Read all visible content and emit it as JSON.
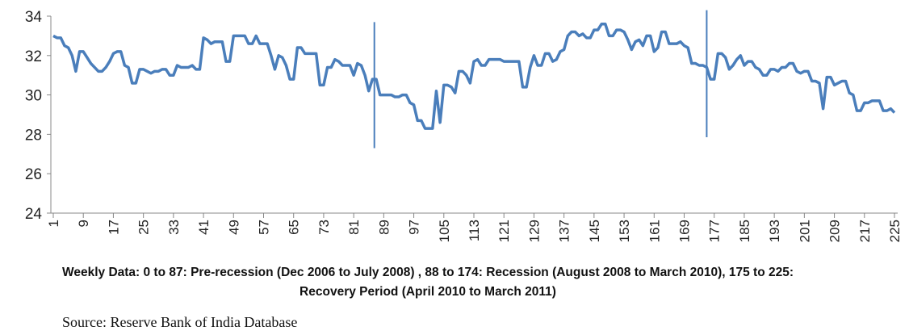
{
  "chart_data": {
    "type": "line",
    "x": [
      1,
      2,
      3,
      4,
      5,
      6,
      7,
      8,
      9,
      10,
      11,
      12,
      13,
      14,
      15,
      16,
      17,
      18,
      19,
      20,
      21,
      22,
      23,
      24,
      25,
      26,
      27,
      28,
      29,
      30,
      31,
      32,
      33,
      34,
      35,
      36,
      37,
      38,
      39,
      40,
      41,
      42,
      43,
      44,
      45,
      46,
      47,
      48,
      49,
      50,
      51,
      52,
      53,
      54,
      55,
      56,
      57,
      58,
      59,
      60,
      61,
      62,
      63,
      64,
      65,
      66,
      67,
      68,
      69,
      70,
      71,
      72,
      73,
      74,
      75,
      76,
      77,
      78,
      79,
      80,
      81,
      82,
      83,
      84,
      85,
      86,
      87,
      88,
      89,
      90,
      91,
      92,
      93,
      94,
      95,
      96,
      97,
      98,
      99,
      100,
      101,
      102,
      103,
      104,
      105,
      106,
      107,
      108,
      109,
      110,
      111,
      112,
      113,
      114,
      115,
      116,
      117,
      118,
      119,
      120,
      121,
      122,
      123,
      124,
      125,
      126,
      127,
      128,
      129,
      130,
      131,
      132,
      133,
      134,
      135,
      136,
      137,
      138,
      139,
      140,
      141,
      142,
      143,
      144,
      145,
      146,
      147,
      148,
      149,
      150,
      151,
      152,
      153,
      154,
      155,
      156,
      157,
      158,
      159,
      160,
      161,
      162,
      163,
      164,
      165,
      166,
      167,
      168,
      169,
      170,
      171,
      172,
      173,
      174,
      175,
      176,
      177,
      178,
      179,
      180,
      181,
      182,
      183,
      184,
      185,
      186,
      187,
      188,
      189,
      190,
      191,
      192,
      193,
      194,
      195,
      196,
      197,
      198,
      199,
      200,
      201,
      202,
      203,
      204,
      205,
      206,
      207,
      208,
      209,
      210,
      211,
      212,
      213,
      214,
      215,
      216,
      217,
      218,
      219,
      220,
      221,
      222,
      223,
      224,
      225
    ],
    "series": [
      {
        "color": "#4a7ebb",
        "values": [
          33.0,
          32.9,
          32.9,
          32.5,
          32.4,
          32.0,
          31.2,
          32.2,
          32.2,
          31.9,
          31.6,
          31.4,
          31.2,
          31.2,
          31.4,
          31.7,
          32.1,
          32.2,
          32.2,
          31.5,
          31.4,
          30.6,
          30.6,
          31.3,
          31.3,
          31.2,
          31.1,
          31.2,
          31.2,
          31.3,
          31.3,
          31.0,
          31.0,
          31.5,
          31.4,
          31.4,
          31.4,
          31.5,
          31.3,
          31.3,
          32.9,
          32.8,
          32.6,
          32.7,
          32.7,
          32.7,
          31.7,
          31.7,
          33.0,
          33.0,
          33.0,
          33.0,
          32.6,
          32.6,
          33.0,
          32.6,
          32.6,
          32.6,
          32.0,
          31.3,
          32.0,
          31.9,
          31.5,
          30.8,
          30.8,
          32.4,
          32.4,
          32.1,
          32.1,
          32.1,
          32.1,
          30.5,
          30.5,
          31.4,
          31.4,
          31.8,
          31.7,
          31.5,
          31.5,
          31.5,
          31.0,
          31.6,
          31.5,
          31.0,
          30.2,
          30.8,
          30.8,
          30.0,
          30.0,
          30.0,
          30.0,
          29.9,
          29.9,
          30.0,
          30.0,
          29.6,
          29.5,
          28.7,
          28.7,
          28.3,
          28.3,
          28.3,
          30.2,
          28.6,
          30.5,
          30.5,
          30.4,
          30.1,
          31.2,
          31.2,
          31.0,
          30.6,
          31.7,
          31.8,
          31.5,
          31.5,
          31.8,
          31.8,
          31.8,
          31.8,
          31.7,
          31.7,
          31.7,
          31.7,
          31.7,
          30.4,
          30.4,
          31.4,
          32.0,
          31.5,
          31.5,
          32.1,
          32.1,
          31.7,
          31.8,
          32.2,
          32.3,
          33.0,
          33.2,
          33.2,
          33.0,
          33.1,
          32.9,
          32.9,
          33.3,
          33.3,
          33.6,
          33.6,
          33.0,
          33.0,
          33.3,
          33.3,
          33.2,
          32.8,
          32.3,
          32.7,
          32.8,
          32.5,
          33.0,
          33.0,
          32.2,
          32.4,
          33.2,
          33.2,
          32.6,
          32.6,
          32.6,
          32.7,
          32.5,
          32.4,
          31.6,
          31.6,
          31.5,
          31.5,
          31.4,
          30.8,
          30.8,
          32.1,
          32.1,
          31.9,
          31.3,
          31.5,
          31.8,
          32.0,
          31.5,
          31.7,
          31.7,
          31.4,
          31.3,
          31.0,
          31.0,
          31.3,
          31.3,
          31.2,
          31.4,
          31.4,
          31.6,
          31.6,
          31.2,
          31.1,
          31.2,
          31.2,
          30.7,
          30.7,
          30.6,
          29.3,
          30.9,
          30.9,
          30.5,
          30.6,
          30.7,
          30.7,
          30.1,
          30.0,
          29.2,
          29.2,
          29.6,
          29.6,
          29.7,
          29.7,
          29.7,
          29.2,
          29.2,
          29.3,
          29.1
        ]
      }
    ],
    "xlim": [
      1,
      225
    ],
    "xticks": [
      1,
      9,
      17,
      25,
      33,
      41,
      49,
      57,
      65,
      73,
      81,
      89,
      97,
      105,
      113,
      121,
      129,
      137,
      145,
      153,
      161,
      169,
      177,
      185,
      193,
      201,
      209,
      217,
      225
    ],
    "ylim": [
      24,
      34
    ],
    "yticks": [
      24,
      26,
      28,
      30,
      32,
      34
    ],
    "vlines": [
      {
        "x": 86.5,
        "y": [
          27.3,
          33.7
        ]
      },
      {
        "x": 175,
        "y": [
          27.85,
          34.3
        ]
      }
    ],
    "caption": "Weekly Data: 0 to 87: Pre-recession (Dec 2006 to July 2008) , 88 to 174: Recession (August 2008 to March 2010), 175 to 225: Recovery Period (April 2010 to March 2011)",
    "source": "Source: Reserve Bank of India Database"
  }
}
